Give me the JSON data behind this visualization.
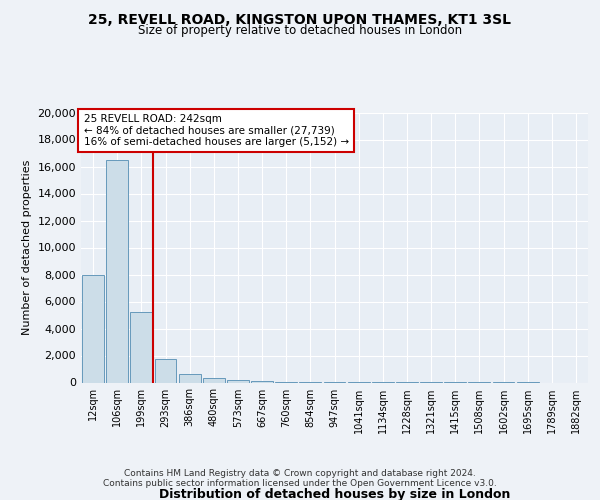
{
  "title1": "25, REVELL ROAD, KINGSTON UPON THAMES, KT1 3SL",
  "title2": "Size of property relative to detached houses in London",
  "xlabel": "Distribution of detached houses by size in London",
  "ylabel": "Number of detached properties",
  "bar_labels": [
    "12sqm",
    "106sqm",
    "199sqm",
    "293sqm",
    "386sqm",
    "480sqm",
    "573sqm",
    "667sqm",
    "760sqm",
    "854sqm",
    "947sqm",
    "1041sqm",
    "1134sqm",
    "1228sqm",
    "1321sqm",
    "1415sqm",
    "1508sqm",
    "1602sqm",
    "1695sqm",
    "1789sqm",
    "1882sqm"
  ],
  "bar_values": [
    8000,
    16500,
    5200,
    1750,
    600,
    350,
    200,
    100,
    50,
    20,
    10,
    5,
    3,
    2,
    1,
    1,
    1,
    1,
    1,
    0,
    0
  ],
  "bar_color": "#ccdde8",
  "bar_edge_color": "#6699bb",
  "annotation_line1": "25 REVELL ROAD: 242sqm",
  "annotation_line2": "← 84% of detached houses are smaller (27,739)",
  "annotation_line3": "16% of semi-detached houses are larger (5,152) →",
  "vline_color": "#cc0000",
  "annotation_box_color": "#cc0000",
  "annotation_bg": "#ffffff",
  "ylim": [
    0,
    20000
  ],
  "yticks": [
    0,
    2000,
    4000,
    6000,
    8000,
    10000,
    12000,
    14000,
    16000,
    18000,
    20000
  ],
  "footnote1": "Contains HM Land Registry data © Crown copyright and database right 2024.",
  "footnote2": "Contains public sector information licensed under the Open Government Licence v3.0.",
  "bg_color": "#eef2f7",
  "plot_bg": "#e8eef5",
  "grid_color": "#ffffff"
}
